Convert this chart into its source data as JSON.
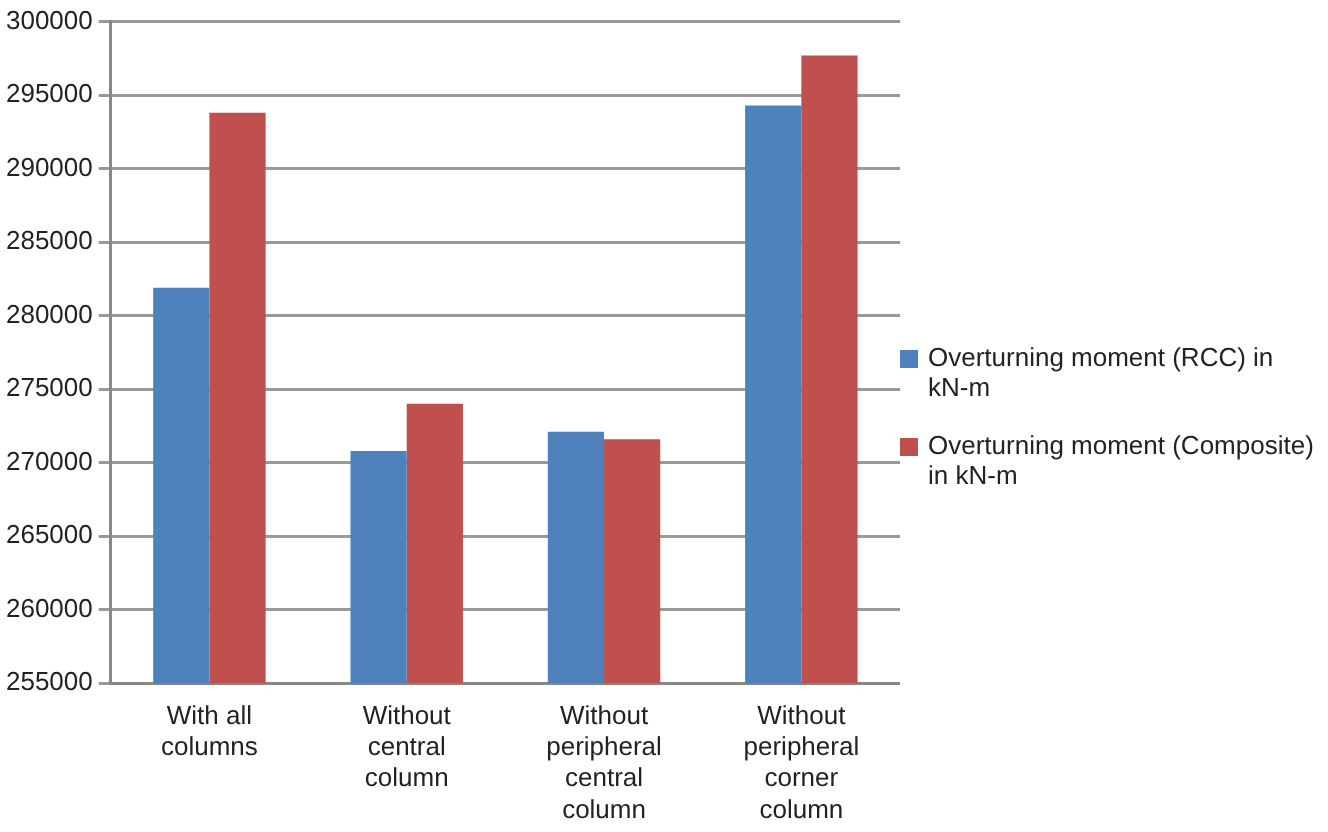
{
  "chart_data": {
    "type": "bar",
    "categories": [
      "With all columns",
      "Without central column",
      "Without peripheral central column",
      "Without peripheral corner column"
    ],
    "series": [
      {
        "name": "Overturning moment (RCC) in kN-m",
        "color": "#4f81bd",
        "values": [
          281900,
          270800,
          272100,
          294300
        ]
      },
      {
        "name": "Overturning moment (Composite) in kN-m",
        "color": "#c0504d",
        "values": [
          293800,
          274000,
          271600,
          297700
        ]
      }
    ],
    "ylim": [
      255000,
      300000
    ],
    "yticks": [
      255000,
      260000,
      265000,
      270000,
      275000,
      280000,
      285000,
      290000,
      295000,
      300000
    ],
    "grid": "y",
    "legend": "right"
  }
}
